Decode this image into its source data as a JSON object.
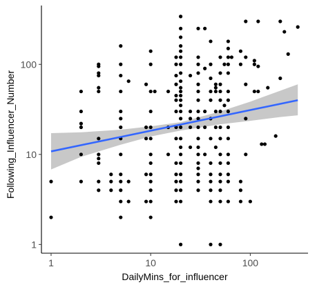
{
  "chart_data": {
    "type": "scatter",
    "title": "",
    "xlabel": "DailyMins_for_influencer",
    "ylabel": "Following_Influencer_Number",
    "x_scale": "log10",
    "y_scale": "log10",
    "xlim": [
      0.8,
      380
    ],
    "ylim": [
      0.8,
      450
    ],
    "x_ticks": [
      1,
      10,
      100
    ],
    "x_tick_labels": [
      "1",
      "10",
      "100"
    ],
    "y_ticks": [
      1,
      10,
      100
    ],
    "y_tick_labels": [
      "1",
      "10",
      "100"
    ],
    "grid": false,
    "legend": "none",
    "point_color": "#000000",
    "fit_line_color": "#3366FF",
    "confidence_band_color": "#c8c8c8",
    "fit_line": {
      "x": [
        1,
        300
      ],
      "y": [
        10.8,
        40
      ]
    },
    "confidence_band": {
      "x": [
        1,
        2,
        5,
        10,
        20,
        50,
        100,
        200,
        300
      ],
      "lower": [
        6.8,
        9.4,
        12.8,
        15.8,
        18.4,
        21.6,
        23.6,
        26.0,
        27.2
      ],
      "upper": [
        17.2,
        17.6,
        18.8,
        20.5,
        22.8,
        30.0,
        38.5,
        51.0,
        60.0
      ]
    },
    "points": [
      {
        "x": 1,
        "y": 5
      },
      {
        "x": 1,
        "y": 2
      },
      {
        "x": 2,
        "y": 50
      },
      {
        "x": 2,
        "y": 30
      },
      {
        "x": 2,
        "y": 22
      },
      {
        "x": 2,
        "y": 20
      },
      {
        "x": 2,
        "y": 10
      },
      {
        "x": 2,
        "y": 5
      },
      {
        "x": 3,
        "y": 100
      },
      {
        "x": 3,
        "y": 95
      },
      {
        "x": 3,
        "y": 80
      },
      {
        "x": 3,
        "y": 75
      },
      {
        "x": 3,
        "y": 55
      },
      {
        "x": 3,
        "y": 50
      },
      {
        "x": 3,
        "y": 15
      },
      {
        "x": 3,
        "y": 10
      },
      {
        "x": 3,
        "y": 9
      },
      {
        "x": 3,
        "y": 8
      },
      {
        "x": 3,
        "y": 5
      },
      {
        "x": 3,
        "y": 4
      },
      {
        "x": 4,
        "y": 6
      },
      {
        "x": 4,
        "y": 5
      },
      {
        "x": 4,
        "y": 4
      },
      {
        "x": 5,
        "y": 160
      },
      {
        "x": 5,
        "y": 100
      },
      {
        "x": 5,
        "y": 75
      },
      {
        "x": 5,
        "y": 50
      },
      {
        "x": 5,
        "y": 30
      },
      {
        "x": 5,
        "y": 25
      },
      {
        "x": 5,
        "y": 20
      },
      {
        "x": 5,
        "y": 15
      },
      {
        "x": 5,
        "y": 10
      },
      {
        "x": 5,
        "y": 6
      },
      {
        "x": 5,
        "y": 5
      },
      {
        "x": 5,
        "y": 4
      },
      {
        "x": 5,
        "y": 3
      },
      {
        "x": 5,
        "y": 2
      },
      {
        "x": 6,
        "y": 65
      },
      {
        "x": 6,
        "y": 5
      },
      {
        "x": 6,
        "y": 3
      },
      {
        "x": 9,
        "y": 60
      },
      {
        "x": 9,
        "y": 20
      },
      {
        "x": 9,
        "y": 15
      },
      {
        "x": 9,
        "y": 6
      },
      {
        "x": 9,
        "y": 3
      },
      {
        "x": 10,
        "y": 140
      },
      {
        "x": 10,
        "y": 100
      },
      {
        "x": 10,
        "y": 50
      },
      {
        "x": 10,
        "y": 30
      },
      {
        "x": 10,
        "y": 20
      },
      {
        "x": 10,
        "y": 15
      },
      {
        "x": 10,
        "y": 10
      },
      {
        "x": 10,
        "y": 8
      },
      {
        "x": 10,
        "y": 6
      },
      {
        "x": 10,
        "y": 5
      },
      {
        "x": 10,
        "y": 4
      },
      {
        "x": 10,
        "y": 3
      },
      {
        "x": 10,
        "y": 2
      },
      {
        "x": 11,
        "y": 50
      },
      {
        "x": 15,
        "y": 50
      },
      {
        "x": 15,
        "y": 20
      },
      {
        "x": 15,
        "y": 10
      },
      {
        "x": 18,
        "y": 120
      },
      {
        "x": 18,
        "y": 100
      },
      {
        "x": 18,
        "y": 75
      },
      {
        "x": 18,
        "y": 60
      },
      {
        "x": 18,
        "y": 45
      },
      {
        "x": 18,
        "y": 40
      },
      {
        "x": 18,
        "y": 30
      },
      {
        "x": 18,
        "y": 20
      },
      {
        "x": 18,
        "y": 15
      },
      {
        "x": 18,
        "y": 8
      },
      {
        "x": 18,
        "y": 6
      },
      {
        "x": 18,
        "y": 5
      },
      {
        "x": 18,
        "y": 4
      },
      {
        "x": 18,
        "y": 3
      },
      {
        "x": 20,
        "y": 340
      },
      {
        "x": 20,
        "y": 250
      },
      {
        "x": 20,
        "y": 200
      },
      {
        "x": 20,
        "y": 160
      },
      {
        "x": 20,
        "y": 140
      },
      {
        "x": 20,
        "y": 120
      },
      {
        "x": 20,
        "y": 100
      },
      {
        "x": 20,
        "y": 80
      },
      {
        "x": 20,
        "y": 65
      },
      {
        "x": 20,
        "y": 55
      },
      {
        "x": 20,
        "y": 50
      },
      {
        "x": 20,
        "y": 45
      },
      {
        "x": 20,
        "y": 40
      },
      {
        "x": 20,
        "y": 35
      },
      {
        "x": 20,
        "y": 30
      },
      {
        "x": 20,
        "y": 25
      },
      {
        "x": 20,
        "y": 20
      },
      {
        "x": 20,
        "y": 15
      },
      {
        "x": 20,
        "y": 12
      },
      {
        "x": 20,
        "y": 10
      },
      {
        "x": 20,
        "y": 8
      },
      {
        "x": 20,
        "y": 6
      },
      {
        "x": 20,
        "y": 5
      },
      {
        "x": 20,
        "y": 4
      },
      {
        "x": 20,
        "y": 3
      },
      {
        "x": 20,
        "y": 1
      },
      {
        "x": 25,
        "y": 75
      },
      {
        "x": 25,
        "y": 30
      },
      {
        "x": 25,
        "y": 25
      },
      {
        "x": 25,
        "y": 20
      },
      {
        "x": 25,
        "y": 12
      },
      {
        "x": 30,
        "y": 250
      },
      {
        "x": 30,
        "y": 120
      },
      {
        "x": 30,
        "y": 100
      },
      {
        "x": 30,
        "y": 80
      },
      {
        "x": 30,
        "y": 60
      },
      {
        "x": 30,
        "y": 50
      },
      {
        "x": 30,
        "y": 40
      },
      {
        "x": 30,
        "y": 30
      },
      {
        "x": 30,
        "y": 25
      },
      {
        "x": 30,
        "y": 20
      },
      {
        "x": 30,
        "y": 15
      },
      {
        "x": 30,
        "y": 12
      },
      {
        "x": 30,
        "y": 10
      },
      {
        "x": 30,
        "y": 8
      },
      {
        "x": 30,
        "y": 7
      },
      {
        "x": 30,
        "y": 6
      },
      {
        "x": 30,
        "y": 5
      },
      {
        "x": 30,
        "y": 4
      },
      {
        "x": 35,
        "y": 250
      },
      {
        "x": 35,
        "y": 90
      },
      {
        "x": 35,
        "y": 30
      },
      {
        "x": 35,
        "y": 20
      },
      {
        "x": 35,
        "y": 10
      },
      {
        "x": 40,
        "y": 180
      },
      {
        "x": 40,
        "y": 100
      },
      {
        "x": 40,
        "y": 70
      },
      {
        "x": 40,
        "y": 50
      },
      {
        "x": 40,
        "y": 40
      },
      {
        "x": 40,
        "y": 25
      },
      {
        "x": 40,
        "y": 15
      },
      {
        "x": 40,
        "y": 8
      },
      {
        "x": 40,
        "y": 6
      },
      {
        "x": 40,
        "y": 5
      },
      {
        "x": 40,
        "y": 4
      },
      {
        "x": 40,
        "y": 3
      },
      {
        "x": 40,
        "y": 1
      },
      {
        "x": 45,
        "y": 60
      },
      {
        "x": 45,
        "y": 55
      },
      {
        "x": 45,
        "y": 50
      },
      {
        "x": 45,
        "y": 30
      },
      {
        "x": 45,
        "y": 20
      },
      {
        "x": 45,
        "y": 12
      },
      {
        "x": 50,
        "y": 120
      },
      {
        "x": 50,
        "y": 80
      },
      {
        "x": 50,
        "y": 60
      },
      {
        "x": 50,
        "y": 50
      },
      {
        "x": 50,
        "y": 40
      },
      {
        "x": 50,
        "y": 30
      },
      {
        "x": 50,
        "y": 20
      },
      {
        "x": 50,
        "y": 15
      },
      {
        "x": 50,
        "y": 10
      },
      {
        "x": 50,
        "y": 8
      },
      {
        "x": 50,
        "y": 6
      },
      {
        "x": 50,
        "y": 5
      },
      {
        "x": 50,
        "y": 4
      },
      {
        "x": 50,
        "y": 3
      },
      {
        "x": 50,
        "y": 1
      },
      {
        "x": 55,
        "y": 100
      },
      {
        "x": 55,
        "y": 35
      },
      {
        "x": 60,
        "y": 180
      },
      {
        "x": 60,
        "y": 150
      },
      {
        "x": 60,
        "y": 120
      },
      {
        "x": 60,
        "y": 100
      },
      {
        "x": 60,
        "y": 80
      },
      {
        "x": 60,
        "y": 50
      },
      {
        "x": 60,
        "y": 40
      },
      {
        "x": 60,
        "y": 30
      },
      {
        "x": 60,
        "y": 20
      },
      {
        "x": 60,
        "y": 15
      },
      {
        "x": 60,
        "y": 10
      },
      {
        "x": 60,
        "y": 8
      },
      {
        "x": 60,
        "y": 6
      },
      {
        "x": 60,
        "y": 5
      },
      {
        "x": 60,
        "y": 3
      },
      {
        "x": 65,
        "y": 120
      },
      {
        "x": 80,
        "y": 140
      },
      {
        "x": 80,
        "y": 100
      },
      {
        "x": 80,
        "y": 5
      },
      {
        "x": 80,
        "y": 4
      },
      {
        "x": 80,
        "y": 3
      },
      {
        "x": 90,
        "y": 300
      },
      {
        "x": 90,
        "y": 120
      },
      {
        "x": 90,
        "y": 60
      },
      {
        "x": 90,
        "y": 25
      },
      {
        "x": 90,
        "y": 10
      },
      {
        "x": 100,
        "y": 3
      },
      {
        "x": 110,
        "y": 110
      },
      {
        "x": 110,
        "y": 100
      },
      {
        "x": 110,
        "y": 50
      },
      {
        "x": 120,
        "y": 300
      },
      {
        "x": 120,
        "y": 95
      },
      {
        "x": 120,
        "y": 50
      },
      {
        "x": 130,
        "y": 13
      },
      {
        "x": 140,
        "y": 13
      },
      {
        "x": 150,
        "y": 55
      },
      {
        "x": 180,
        "y": 16
      },
      {
        "x": 200,
        "y": 300
      },
      {
        "x": 200,
        "y": 70
      },
      {
        "x": 220,
        "y": 230
      },
      {
        "x": 240,
        "y": 130
      },
      {
        "x": 300,
        "y": 260
      }
    ]
  }
}
